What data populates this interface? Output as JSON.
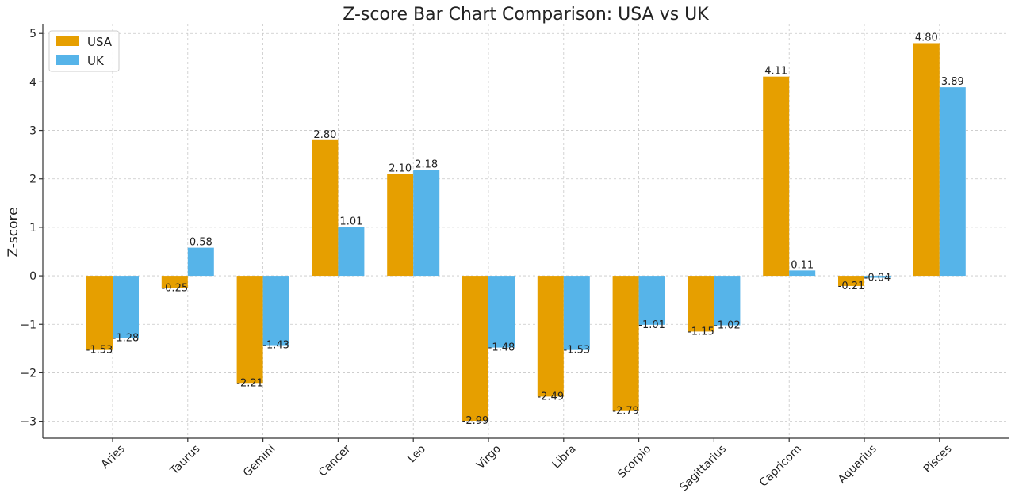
{
  "chart_data": {
    "type": "bar",
    "title": "Z-score Bar Chart Comparison: USA vs UK",
    "xlabel": "",
    "ylabel": "Z-score",
    "ylim": [
      -3.35,
      5.2
    ],
    "yticks": [
      5,
      4,
      3,
      2,
      1,
      0,
      -1,
      -2,
      -3
    ],
    "ytick_labels": [
      "5",
      "4",
      "3",
      "2",
      "1",
      "0",
      "−1",
      "−2",
      "−3"
    ],
    "grid": true,
    "legend_position": "top-left",
    "categories": [
      "Aries",
      "Taurus",
      "Gemini",
      "Cancer",
      "Leo",
      "Virgo",
      "Libra",
      "Scorpio",
      "Sagittarius",
      "Capricorn",
      "Aquarius",
      "Pisces"
    ],
    "series": [
      {
        "name": "USA",
        "color": "#E69F00",
        "values": [
          -1.53,
          -0.25,
          -2.21,
          2.8,
          2.1,
          -2.99,
          -2.49,
          -2.79,
          -1.15,
          4.11,
          -0.21,
          4.8
        ],
        "labels": [
          "-1.53",
          "-0.25",
          "-2.21",
          "2.80",
          "2.10",
          "-2.99",
          "-2.49",
          "-2.79",
          "-1.15",
          "4.11",
          "-0.21",
          "4.80"
        ]
      },
      {
        "name": "UK",
        "color": "#56B4E9",
        "values": [
          -1.28,
          0.58,
          -1.43,
          1.01,
          2.18,
          -1.48,
          -1.53,
          -1.01,
          -1.02,
          0.11,
          -0.04,
          3.89
        ],
        "labels": [
          "-1.28",
          "0.58",
          "-1.43",
          "1.01",
          "2.18",
          "-1.48",
          "-1.53",
          "-1.01",
          "-1.02",
          "0.11",
          "-0.04",
          "3.89"
        ]
      }
    ]
  }
}
